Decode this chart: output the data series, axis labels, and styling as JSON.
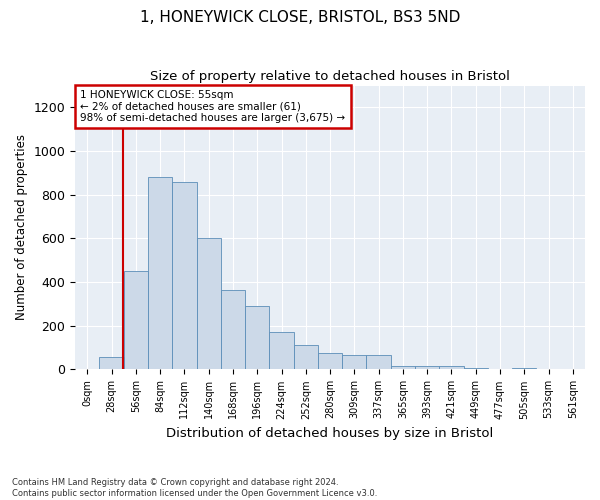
{
  "title1": "1, HONEYWICK CLOSE, BRISTOL, BS3 5ND",
  "title2": "Size of property relative to detached houses in Bristol",
  "xlabel": "Distribution of detached houses by size in Bristol",
  "ylabel": "Number of detached properties",
  "annotation_line1": "1 HONEYWICK CLOSE: 55sqm",
  "annotation_line2": "← 2% of detached houses are smaller (61)",
  "annotation_line3": "98% of semi-detached houses are larger (3,675) →",
  "footer1": "Contains HM Land Registry data © Crown copyright and database right 2024.",
  "footer2": "Contains public sector information licensed under the Open Government Licence v3.0.",
  "bar_color": "#ccd9e8",
  "bar_edge_color": "#5b8db8",
  "vline_color": "#cc0000",
  "vline_x": 1.97,
  "annotation_box_color": "#cc0000",
  "plot_bg_color": "#e8eef5",
  "ylim": [
    0,
    1300
  ],
  "yticks": [
    0,
    200,
    400,
    600,
    800,
    1000,
    1200
  ],
  "categories": [
    "0sqm",
    "28sqm",
    "56sqm",
    "84sqm",
    "112sqm",
    "140sqm",
    "168sqm",
    "196sqm",
    "224sqm",
    "252sqm",
    "280sqm",
    "309sqm",
    "337sqm",
    "365sqm",
    "393sqm",
    "421sqm",
    "449sqm",
    "477sqm",
    "505sqm",
    "533sqm",
    "561sqm"
  ],
  "values": [
    4,
    55,
    450,
    880,
    860,
    600,
    365,
    290,
    170,
    110,
    75,
    65,
    65,
    18,
    18,
    18,
    5,
    0,
    5,
    2,
    1
  ]
}
